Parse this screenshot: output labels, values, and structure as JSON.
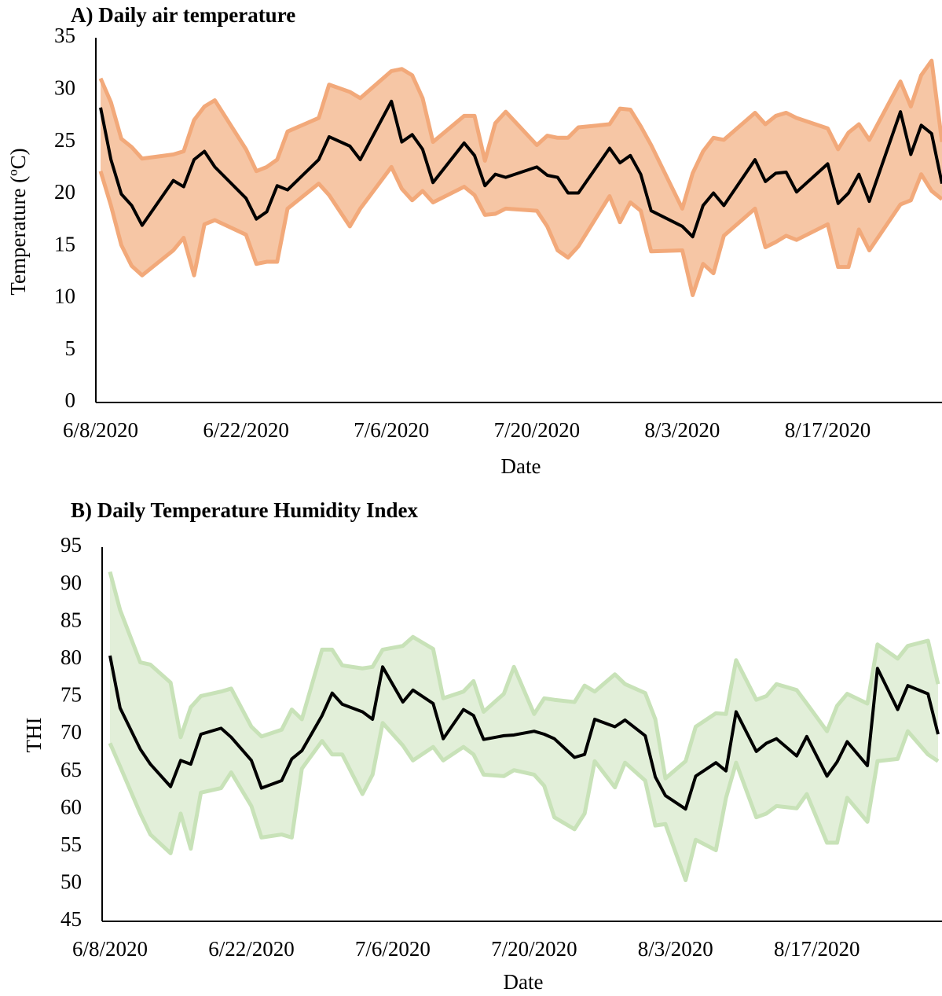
{
  "chart_data": [
    {
      "type": "line",
      "title": "A) Daily air temperature",
      "x_label": "Date",
      "y_label": "Temperature (ºC)",
      "x": [
        "6/8/2020",
        "6/9/2020",
        "6/10/2020",
        "6/11/2020",
        "6/12/2020",
        "6/15/2020",
        "6/16/2020",
        "6/17/2020",
        "6/18/2020",
        "6/19/2020",
        "6/22/2020",
        "6/23/2020",
        "6/24/2020",
        "6/25/2020",
        "6/26/2020",
        "6/29/2020",
        "6/30/2020",
        "7/2/2020",
        "7/3/2020",
        "7/6/2020",
        "7/7/2020",
        "7/8/2020",
        "7/9/2020",
        "7/10/2020",
        "7/13/2020",
        "7/14/2020",
        "7/15/2020",
        "7/16/2020",
        "7/17/2020",
        "7/20/2020",
        "7/21/2020",
        "7/22/2020",
        "7/23/2020",
        "7/24/2020",
        "7/27/2020",
        "7/28/2020",
        "7/29/2020",
        "7/30/2020",
        "7/31/2020",
        "8/3/2020",
        "8/4/2020",
        "8/5/2020",
        "8/6/2020",
        "8/7/2020",
        "8/10/2020",
        "8/11/2020",
        "8/12/2020",
        "8/13/2020",
        "8/14/2020",
        "8/17/2020",
        "8/18/2020",
        "8/19/2020",
        "8/20/2020",
        "8/21/2020",
        "8/24/2020",
        "8/25/2020",
        "8/26/2020",
        "8/27/2020",
        "8/28/2020"
      ],
      "values": [
        28.3,
        23.3,
        20.0,
        18.9,
        17.0,
        21.3,
        20.7,
        23.3,
        24.1,
        22.6,
        19.6,
        17.6,
        18.3,
        20.8,
        20.4,
        23.3,
        25.5,
        24.6,
        23.3,
        28.9,
        25.0,
        25.7,
        24.3,
        21.1,
        24.9,
        23.7,
        20.8,
        21.9,
        21.6,
        22.6,
        21.8,
        21.6,
        20.1,
        20.1,
        24.4,
        23.0,
        23.7,
        21.9,
        18.4,
        16.9,
        15.9,
        18.9,
        20.1,
        18.9,
        23.3,
        21.2,
        22.0,
        22.1,
        20.2,
        22.9,
        19.1,
        20.1,
        21.9,
        19.3,
        27.9,
        23.8,
        26.6,
        25.8,
        21.0
      ],
      "upper": [
        31.1,
        28.8,
        25.3,
        24.5,
        23.4,
        23.8,
        24.1,
        27.1,
        28.4,
        29.0,
        24.3,
        22.2,
        22.6,
        23.3,
        26.0,
        27.3,
        30.5,
        29.8,
        29.2,
        31.8,
        32.0,
        31.4,
        29.2,
        25.0,
        27.5,
        27.5,
        23.2,
        26.8,
        27.9,
        24.7,
        25.6,
        25.4,
        25.4,
        26.4,
        26.7,
        28.2,
        28.1,
        26.5,
        24.7,
        18.6,
        22.0,
        24.1,
        25.4,
        25.2,
        27.8,
        26.7,
        27.5,
        27.8,
        27.3,
        26.3,
        24.3,
        25.9,
        26.7,
        25.2,
        30.8,
        28.4,
        31.4,
        32.8,
        25.0
      ],
      "lower": [
        22.2,
        18.9,
        15.1,
        13.1,
        12.2,
        14.6,
        15.8,
        12.2,
        17.1,
        17.5,
        16.1,
        13.3,
        13.5,
        13.5,
        18.6,
        21.0,
        19.9,
        16.9,
        18.6,
        22.6,
        20.5,
        19.4,
        20.3,
        19.2,
        20.7,
        19.9,
        18.0,
        18.1,
        18.6,
        18.4,
        16.9,
        14.6,
        13.9,
        15.0,
        19.8,
        17.3,
        19.2,
        18.4,
        14.5,
        14.6,
        10.3,
        13.3,
        12.4,
        16.0,
        18.6,
        14.9,
        15.4,
        16.0,
        15.6,
        17.1,
        13.0,
        13.0,
        16.6,
        14.6,
        19.0,
        19.4,
        21.9,
        20.3,
        19.5
      ],
      "color": "#000000",
      "band_color": "#f2a97a",
      "band_fill": "#f6c6a5",
      "xlim": [
        "6/8/2020",
        "8/28/2020"
      ],
      "xticks": [
        "6/8/2020",
        "6/22/2020",
        "7/6/2020",
        "7/20/2020",
        "8/3/2020",
        "8/17/2020"
      ],
      "ylim": [
        0,
        35
      ],
      "yticks": [
        0,
        5,
        10,
        15,
        20,
        25,
        30,
        35
      ],
      "grid": false
    },
    {
      "type": "line",
      "title": "B) Daily Temperature  Humidity Index",
      "x_label": "Date",
      "y_label": "THI",
      "x": [
        "6/8/2020",
        "6/9/2020",
        "6/11/2020",
        "6/12/2020",
        "6/14/2020",
        "6/15/2020",
        "6/16/2020",
        "6/17/2020",
        "6/19/2020",
        "6/20/2020",
        "6/22/2020",
        "6/23/2020",
        "6/25/2020",
        "6/26/2020",
        "6/27/2020",
        "6/29/2020",
        "6/30/2020",
        "7/1/2020",
        "7/3/2020",
        "7/4/2020",
        "7/5/2020",
        "7/7/2020",
        "7/8/2020",
        "7/10/2020",
        "7/11/2020",
        "7/13/2020",
        "7/14/2020",
        "7/15/2020",
        "7/17/2020",
        "7/18/2020",
        "7/20/2020",
        "7/21/2020",
        "7/22/2020",
        "7/24/2020",
        "7/25/2020",
        "7/26/2020",
        "7/28/2020",
        "7/29/2020",
        "7/31/2020",
        "8/1/2020",
        "8/2/2020",
        "8/4/2020",
        "8/5/2020",
        "8/7/2020",
        "8/8/2020",
        "8/9/2020",
        "8/11/2020",
        "8/12/2020",
        "8/13/2020",
        "8/15/2020",
        "8/16/2020",
        "8/18/2020",
        "8/19/2020",
        "8/20/2020",
        "8/22/2020",
        "8/23/2020",
        "8/25/2020",
        "8/26/2020",
        "8/28/2020",
        "8/29/2020"
      ],
      "values": [
        80.5,
        73.5,
        68,
        66,
        63,
        66.5,
        66,
        70,
        70.8,
        69.6,
        66.5,
        62.8,
        63.8,
        66.7,
        67.8,
        72.5,
        75.5,
        74,
        73,
        72,
        79,
        74.3,
        75.9,
        74.1,
        69.4,
        73.3,
        72.5,
        69.3,
        69.8,
        69.9,
        70.4,
        70,
        69.4,
        66.9,
        67.3,
        72,
        71,
        71.9,
        69.8,
        64.3,
        61.8,
        60,
        64.4,
        66.2,
        65.1,
        73,
        67.7,
        68.8,
        69.4,
        67.1,
        69.7,
        64.4,
        66.3,
        69,
        65.8,
        78.8,
        73.3,
        76.5,
        75.4,
        70
      ],
      "upper": [
        91.7,
        86.6,
        79.6,
        79.3,
        76.9,
        69.6,
        73.6,
        75.1,
        75.7,
        76.1,
        71,
        69.7,
        70.6,
        73.3,
        72,
        81.3,
        81.3,
        79.2,
        78.8,
        79,
        81.3,
        81.8,
        83,
        81.4,
        74.8,
        75.7,
        77.1,
        73,
        75.4,
        79,
        72.7,
        74.8,
        74.6,
        74.3,
        76.5,
        75.7,
        78,
        76.7,
        75.5,
        72,
        64.1,
        66.4,
        71,
        72.8,
        72.7,
        79.9,
        74.6,
        75.1,
        76.7,
        75.9,
        74.1,
        70.4,
        73.8,
        75.4,
        74.1,
        82,
        80.1,
        81.8,
        82.5,
        76.7
      ],
      "lower": [
        68.8,
        65.7,
        59.4,
        56.6,
        54.1,
        59.4,
        54.7,
        62.2,
        62.8,
        64.9,
        60.4,
        56.2,
        56.6,
        56.2,
        65.4,
        69.1,
        67.3,
        67.3,
        62,
        64.6,
        71.5,
        68.5,
        66.5,
        68.3,
        66.5,
        68.3,
        67.3,
        64.6,
        64.4,
        65.2,
        64.6,
        63.1,
        58.9,
        57.3,
        59.4,
        66.4,
        62.9,
        66.2,
        63.8,
        57.8,
        58,
        50.5,
        55.9,
        54.5,
        61.5,
        66.2,
        58.9,
        59.4,
        60.4,
        60.1,
        62,
        55.5,
        55.5,
        61.5,
        58.3,
        66.4,
        66.7,
        70.4,
        67.3,
        66.4
      ],
      "color": "#000000",
      "band_color": "#c8e2b8",
      "band_fill": "#e2efd9",
      "xlim": [
        "6/8/2020",
        "8/29/2020"
      ],
      "xticks": [
        "6/8/2020",
        "6/22/2020",
        "7/6/2020",
        "7/20/2020",
        "8/3/2020",
        "8/17/2020"
      ],
      "ylim": [
        45,
        95
      ],
      "yticks": [
        45,
        50,
        55,
        60,
        65,
        70,
        75,
        80,
        85,
        90,
        95
      ],
      "grid": false
    }
  ]
}
